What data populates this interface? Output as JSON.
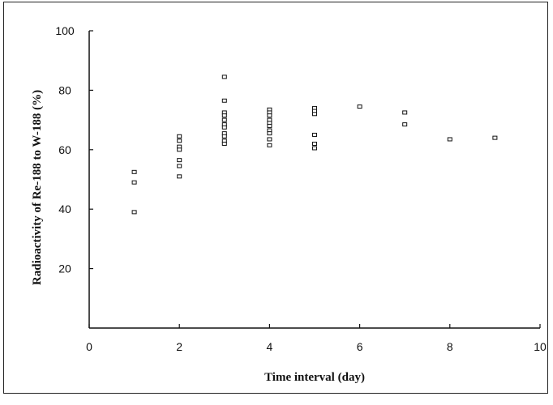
{
  "chart_data": {
    "type": "scatter",
    "title": "",
    "xlabel": "Time interval (day)",
    "ylabel": "Radioactivity of  Re-188 to W-188 (%)",
    "xlim": [
      0,
      10
    ],
    "ylim": [
      0,
      100
    ],
    "x_ticks": [
      "0",
      "2",
      "4",
      "6",
      "8",
      "10"
    ],
    "y_ticks": [
      "20",
      "40",
      "60",
      "80",
      "100"
    ],
    "grid": false,
    "legend": "none",
    "marker": "open-square",
    "points": [
      {
        "x": 1,
        "y": 52.5
      },
      {
        "x": 1,
        "y": 49.0
      },
      {
        "x": 1,
        "y": 39.0
      },
      {
        "x": 2,
        "y": 64.5
      },
      {
        "x": 2,
        "y": 63.0
      },
      {
        "x": 2,
        "y": 61.0
      },
      {
        "x": 2,
        "y": 60.0
      },
      {
        "x": 2,
        "y": 56.5
      },
      {
        "x": 2,
        "y": 54.5
      },
      {
        "x": 2,
        "y": 51.0
      },
      {
        "x": 3,
        "y": 84.5
      },
      {
        "x": 3,
        "y": 76.5
      },
      {
        "x": 3,
        "y": 72.5
      },
      {
        "x": 3,
        "y": 71.5
      },
      {
        "x": 3,
        "y": 70.0
      },
      {
        "x": 3,
        "y": 68.5
      },
      {
        "x": 3,
        "y": 67.5
      },
      {
        "x": 3,
        "y": 65.5
      },
      {
        "x": 3,
        "y": 64.5
      },
      {
        "x": 3,
        "y": 63.0
      },
      {
        "x": 3,
        "y": 62.0
      },
      {
        "x": 4,
        "y": 73.5
      },
      {
        "x": 4,
        "y": 72.5
      },
      {
        "x": 4,
        "y": 71.5
      },
      {
        "x": 4,
        "y": 70.0
      },
      {
        "x": 4,
        "y": 69.0
      },
      {
        "x": 4,
        "y": 68.0
      },
      {
        "x": 4,
        "y": 66.5
      },
      {
        "x": 4,
        "y": 65.5
      },
      {
        "x": 4,
        "y": 63.5
      },
      {
        "x": 4,
        "y": 61.5
      },
      {
        "x": 5,
        "y": 74.0
      },
      {
        "x": 5,
        "y": 73.0
      },
      {
        "x": 5,
        "y": 72.0
      },
      {
        "x": 5,
        "y": 65.0
      },
      {
        "x": 5,
        "y": 62.0
      },
      {
        "x": 5,
        "y": 60.5
      },
      {
        "x": 6,
        "y": 74.5
      },
      {
        "x": 7,
        "y": 72.5
      },
      {
        "x": 7,
        "y": 68.5
      },
      {
        "x": 8,
        "y": 63.5
      },
      {
        "x": 9,
        "y": 64.0
      }
    ]
  }
}
